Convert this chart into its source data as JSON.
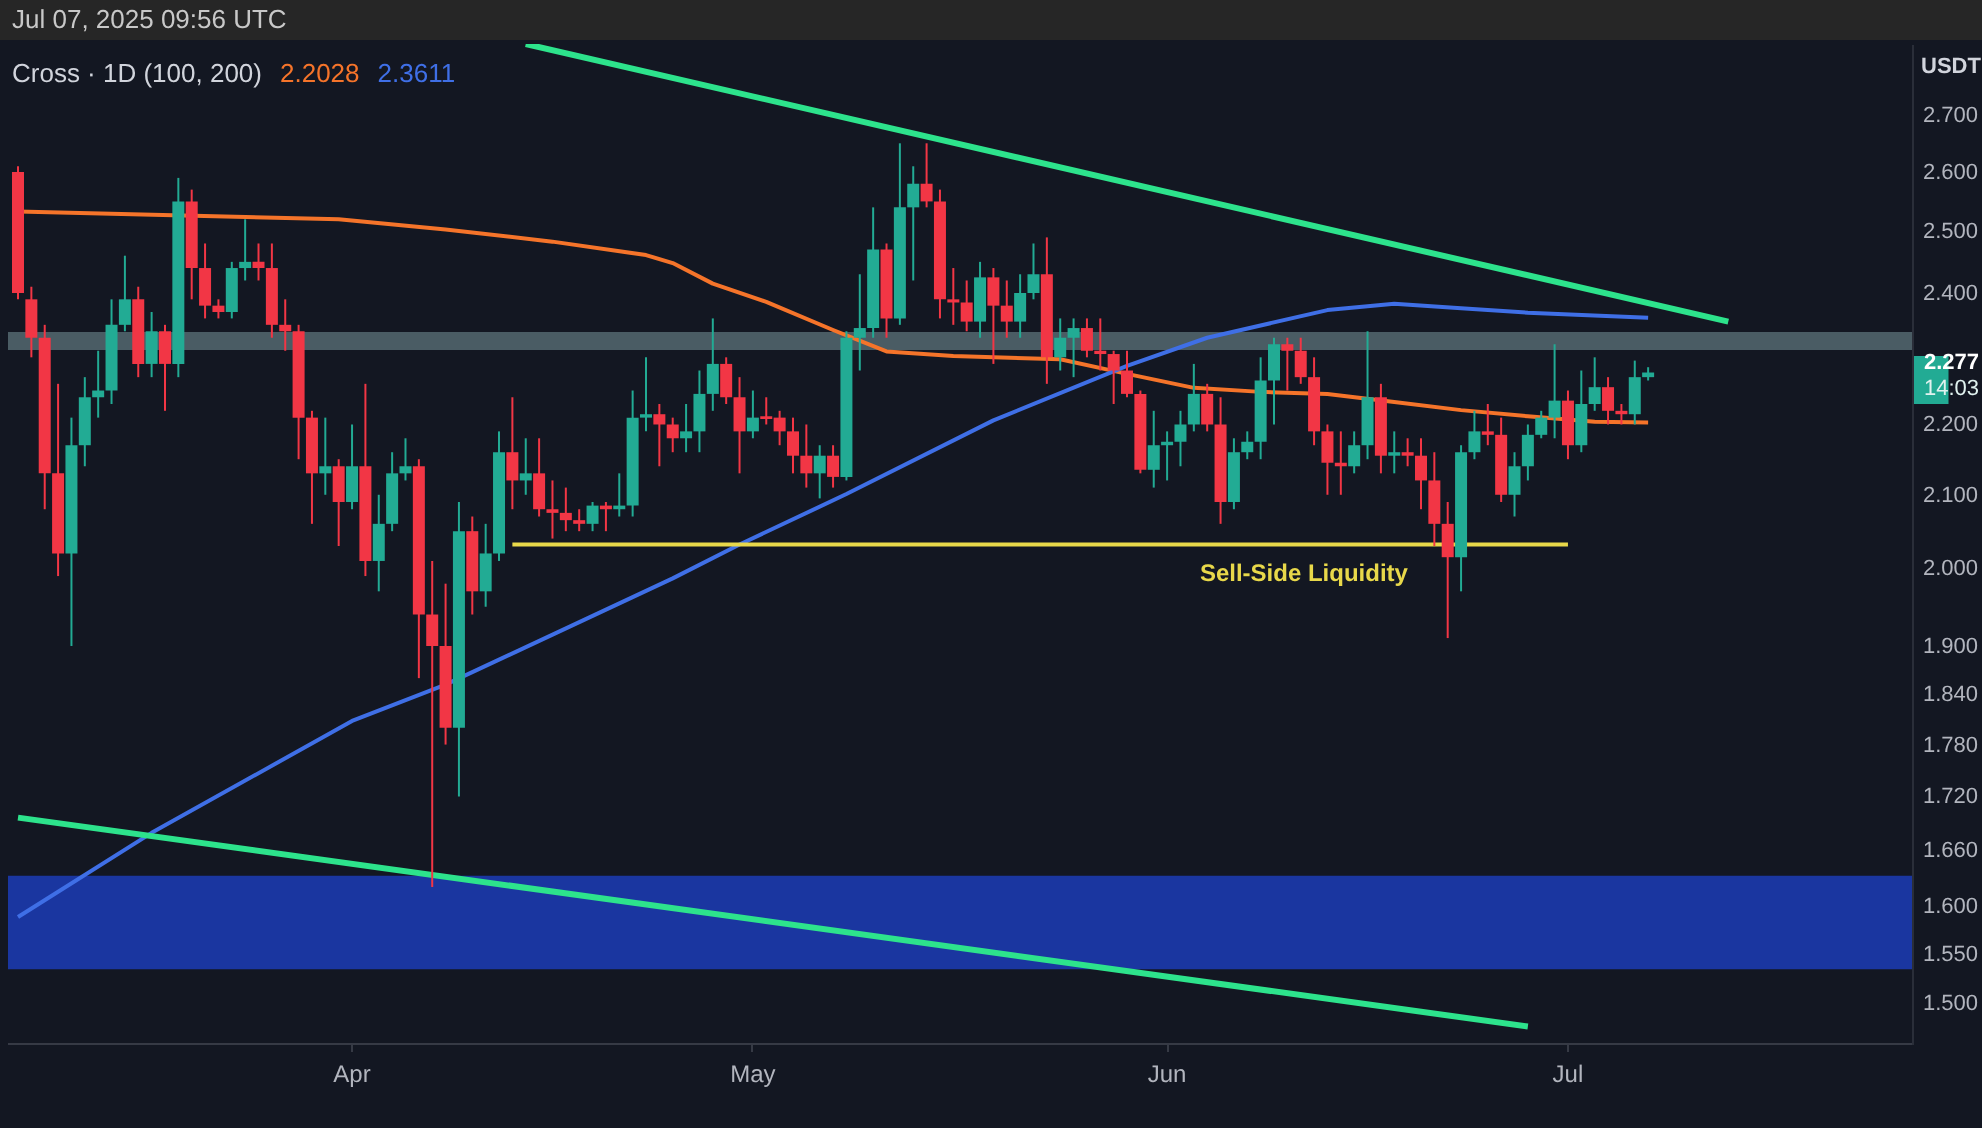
{
  "chart_data": {
    "type": "candlestick",
    "title": "Cross · 1D (100, 200)",
    "subtitle": "Jul 07, 2025 09:56 UTC",
    "ylabel": "USDT",
    "x": [
      "2025-03-07",
      "2025-03-08",
      "2025-03-09",
      "2025-03-10",
      "2025-03-11",
      "2025-03-12",
      "2025-03-13",
      "2025-03-14",
      "2025-03-15",
      "2025-03-16",
      "2025-03-17",
      "2025-03-18",
      "2025-03-19",
      "2025-03-20",
      "2025-03-21",
      "2025-03-22",
      "2025-03-23",
      "2025-03-24",
      "2025-03-25",
      "2025-03-26",
      "2025-03-27",
      "2025-03-28",
      "2025-03-29",
      "2025-03-30",
      "2025-03-31",
      "2025-04-01",
      "2025-04-02",
      "2025-04-03",
      "2025-04-04",
      "2025-04-05",
      "2025-04-06",
      "2025-04-07",
      "2025-04-08",
      "2025-04-09",
      "2025-04-10",
      "2025-04-11",
      "2025-04-12",
      "2025-04-13",
      "2025-04-14",
      "2025-04-15",
      "2025-04-16",
      "2025-04-17",
      "2025-04-18",
      "2025-04-19",
      "2025-04-20",
      "2025-04-21",
      "2025-04-22",
      "2025-04-23",
      "2025-04-24",
      "2025-04-25",
      "2025-04-26",
      "2025-04-27",
      "2025-04-28",
      "2025-04-29",
      "2025-04-30",
      "2025-05-01",
      "2025-05-02",
      "2025-05-03",
      "2025-05-04",
      "2025-05-05",
      "2025-05-06",
      "2025-05-07",
      "2025-05-08",
      "2025-05-09",
      "2025-05-10",
      "2025-05-11",
      "2025-05-12",
      "2025-05-13",
      "2025-05-14",
      "2025-05-15",
      "2025-05-16",
      "2025-05-17",
      "2025-05-18",
      "2025-05-19",
      "2025-05-20",
      "2025-05-21",
      "2025-05-22",
      "2025-05-23",
      "2025-05-24",
      "2025-05-25",
      "2025-05-26",
      "2025-05-27",
      "2025-05-28",
      "2025-05-29",
      "2025-05-30",
      "2025-05-31",
      "2025-06-01",
      "2025-06-02",
      "2025-06-03",
      "2025-06-04",
      "2025-06-05",
      "2025-06-06",
      "2025-06-07",
      "2025-06-08",
      "2025-06-09",
      "2025-06-10",
      "2025-06-11",
      "2025-06-12",
      "2025-06-13",
      "2025-06-14",
      "2025-06-15",
      "2025-06-16",
      "2025-06-17",
      "2025-06-18",
      "2025-06-19",
      "2025-06-20",
      "2025-06-21",
      "2025-06-22",
      "2025-06-23",
      "2025-06-24",
      "2025-06-25",
      "2025-06-26",
      "2025-06-27",
      "2025-06-28",
      "2025-06-29",
      "2025-06-30",
      "2025-07-01",
      "2025-07-02",
      "2025-07-03",
      "2025-07-04",
      "2025-07-05",
      "2025-07-06",
      "2025-07-07"
    ],
    "ohlc": [
      [
        2.6,
        2.61,
        2.39,
        2.4
      ],
      [
        2.39,
        2.41,
        2.3,
        2.33
      ],
      [
        2.33,
        2.35,
        2.08,
        2.13
      ],
      [
        2.13,
        2.26,
        1.99,
        2.02
      ],
      [
        2.02,
        2.21,
        1.9,
        2.17
      ],
      [
        2.17,
        2.27,
        2.14,
        2.24
      ],
      [
        2.24,
        2.31,
        2.21,
        2.25
      ],
      [
        2.25,
        2.39,
        2.23,
        2.35
      ],
      [
        2.35,
        2.46,
        2.34,
        2.39
      ],
      [
        2.39,
        2.41,
        2.27,
        2.29
      ],
      [
        2.29,
        2.37,
        2.27,
        2.34
      ],
      [
        2.34,
        2.35,
        2.22,
        2.29
      ],
      [
        2.29,
        2.59,
        2.27,
        2.55
      ],
      [
        2.55,
        2.57,
        2.39,
        2.44
      ],
      [
        2.44,
        2.48,
        2.36,
        2.38
      ],
      [
        2.38,
        2.39,
        2.36,
        2.37
      ],
      [
        2.37,
        2.45,
        2.36,
        2.44
      ],
      [
        2.44,
        2.52,
        2.42,
        2.45
      ],
      [
        2.45,
        2.48,
        2.42,
        2.44
      ],
      [
        2.44,
        2.48,
        2.33,
        2.35
      ],
      [
        2.35,
        2.39,
        2.31,
        2.34
      ],
      [
        2.34,
        2.35,
        2.15,
        2.21
      ],
      [
        2.21,
        2.22,
        2.06,
        2.13
      ],
      [
        2.13,
        2.21,
        2.1,
        2.14
      ],
      [
        2.14,
        2.15,
        2.03,
        2.09
      ],
      [
        2.09,
        2.2,
        2.08,
        2.14
      ],
      [
        2.14,
        2.26,
        1.99,
        2.01
      ],
      [
        2.01,
        2.1,
        1.97,
        2.06
      ],
      [
        2.06,
        2.16,
        2.05,
        2.13
      ],
      [
        2.13,
        2.18,
        2.12,
        2.14
      ],
      [
        2.14,
        2.15,
        1.86,
        1.94
      ],
      [
        1.94,
        2.01,
        1.62,
        1.9
      ],
      [
        1.9,
        1.98,
        1.78,
        1.8
      ],
      [
        1.8,
        2.09,
        1.72,
        2.05
      ],
      [
        2.05,
        2.07,
        1.94,
        1.97
      ],
      [
        1.97,
        2.06,
        1.95,
        2.02
      ],
      [
        2.02,
        2.19,
        2.01,
        2.16
      ],
      [
        2.16,
        2.24,
        2.08,
        2.12
      ],
      [
        2.12,
        2.18,
        2.1,
        2.13
      ],
      [
        2.13,
        2.18,
        2.07,
        2.08
      ],
      [
        2.08,
        2.12,
        2.04,
        2.075
      ],
      [
        2.075,
        2.11,
        2.05,
        2.065
      ],
      [
        2.065,
        2.08,
        2.05,
        2.06
      ],
      [
        2.06,
        2.09,
        2.05,
        2.085
      ],
      [
        2.085,
        2.09,
        2.05,
        2.08
      ],
      [
        2.08,
        2.13,
        2.07,
        2.085
      ],
      [
        2.085,
        2.25,
        2.07,
        2.21
      ],
      [
        2.21,
        2.3,
        2.19,
        2.215
      ],
      [
        2.215,
        2.23,
        2.14,
        2.2
      ],
      [
        2.2,
        2.21,
        2.16,
        2.18
      ],
      [
        2.18,
        2.23,
        2.16,
        2.19
      ],
      [
        2.19,
        2.28,
        2.16,
        2.245
      ],
      [
        2.245,
        2.36,
        2.22,
        2.29
      ],
      [
        2.29,
        2.3,
        2.23,
        2.24
      ],
      [
        2.24,
        2.27,
        2.13,
        2.19
      ],
      [
        2.19,
        2.25,
        2.18,
        2.21
      ],
      [
        2.212,
        2.24,
        2.2,
        2.208
      ],
      [
        2.21,
        2.22,
        2.17,
        2.19
      ],
      [
        2.19,
        2.21,
        2.13,
        2.155
      ],
      [
        2.155,
        2.2,
        2.11,
        2.13
      ],
      [
        2.13,
        2.17,
        2.095,
        2.155
      ],
      [
        2.155,
        2.17,
        2.11,
        2.125
      ],
      [
        2.125,
        2.34,
        2.12,
        2.33
      ],
      [
        2.33,
        2.43,
        2.28,
        2.345
      ],
      [
        2.345,
        2.54,
        2.33,
        2.47
      ],
      [
        2.47,
        2.48,
        2.33,
        2.36
      ],
      [
        2.36,
        2.65,
        2.35,
        2.54
      ],
      [
        2.54,
        2.61,
        2.42,
        2.58
      ],
      [
        2.58,
        2.65,
        2.54,
        2.55
      ],
      [
        2.55,
        2.57,
        2.36,
        2.39
      ],
      [
        2.39,
        2.44,
        2.35,
        2.385
      ],
      [
        2.385,
        2.42,
        2.34,
        2.355
      ],
      [
        2.355,
        2.45,
        2.33,
        2.425
      ],
      [
        2.425,
        2.44,
        2.29,
        2.38
      ],
      [
        2.38,
        2.42,
        2.33,
        2.355
      ],
      [
        2.355,
        2.43,
        2.33,
        2.4
      ],
      [
        2.4,
        2.48,
        2.39,
        2.43
      ],
      [
        2.43,
        2.49,
        2.26,
        2.3
      ],
      [
        2.3,
        2.36,
        2.28,
        2.33
      ],
      [
        2.33,
        2.36,
        2.27,
        2.345
      ],
      [
        2.345,
        2.36,
        2.3,
        2.31
      ],
      [
        2.31,
        2.36,
        2.28,
        2.305
      ],
      [
        2.305,
        2.31,
        2.23,
        2.28
      ],
      [
        2.28,
        2.31,
        2.24,
        2.245
      ],
      [
        2.245,
        2.25,
        2.13,
        2.135
      ],
      [
        2.135,
        2.22,
        2.11,
        2.17
      ],
      [
        2.17,
        2.19,
        2.12,
        2.175
      ],
      [
        2.175,
        2.22,
        2.14,
        2.2
      ],
      [
        2.2,
        2.29,
        2.19,
        2.245
      ],
      [
        2.245,
        2.26,
        2.19,
        2.2
      ],
      [
        2.2,
        2.24,
        2.06,
        2.09
      ],
      [
        2.09,
        2.18,
        2.08,
        2.16
      ],
      [
        2.16,
        2.19,
        2.15,
        2.175
      ],
      [
        2.175,
        2.3,
        2.15,
        2.265
      ],
      [
        2.265,
        2.33,
        2.2,
        2.32
      ],
      [
        2.32,
        2.33,
        2.25,
        2.31
      ],
      [
        2.31,
        2.33,
        2.26,
        2.27
      ],
      [
        2.27,
        2.3,
        2.17,
        2.19
      ],
      [
        2.19,
        2.2,
        2.1,
        2.145
      ],
      [
        2.145,
        2.19,
        2.1,
        2.14
      ],
      [
        2.14,
        2.19,
        2.13,
        2.17
      ],
      [
        2.17,
        2.34,
        2.15,
        2.24
      ],
      [
        2.24,
        2.26,
        2.13,
        2.155
      ],
      [
        2.155,
        2.19,
        2.13,
        2.16
      ],
      [
        2.16,
        2.18,
        2.14,
        2.155
      ],
      [
        2.155,
        2.18,
        2.08,
        2.12
      ],
      [
        2.12,
        2.16,
        2.03,
        2.06
      ],
      [
        2.06,
        2.09,
        1.91,
        2.015
      ],
      [
        2.015,
        2.17,
        1.97,
        2.16
      ],
      [
        2.16,
        2.22,
        2.15,
        2.19
      ],
      [
        2.19,
        2.23,
        2.17,
        2.185
      ],
      [
        2.185,
        2.21,
        2.09,
        2.1
      ],
      [
        2.1,
        2.16,
        2.07,
        2.14
      ],
      [
        2.14,
        2.2,
        2.12,
        2.185
      ],
      [
        2.185,
        2.22,
        2.18,
        2.21
      ],
      [
        2.21,
        2.32,
        2.18,
        2.235
      ],
      [
        2.235,
        2.25,
        2.15,
        2.17
      ],
      [
        2.17,
        2.28,
        2.16,
        2.23
      ],
      [
        2.23,
        2.3,
        2.22,
        2.255
      ],
      [
        2.255,
        2.27,
        2.2,
        2.22
      ],
      [
        2.22,
        2.23,
        2.2,
        2.215
      ],
      [
        2.215,
        2.295,
        2.2,
        2.27
      ],
      [
        2.27,
        2.285,
        2.265,
        2.277
      ]
    ],
    "colors": [
      "#f23645",
      "#f23645",
      "#f23645",
      "#f23645",
      "#22ab94",
      "#22ab94",
      "#22ab94",
      "#22ab94",
      "#22ab94",
      "#f23645",
      "#22ab94",
      "#f23645",
      "#22ab94",
      "#f23645",
      "#f23645",
      "#f23645",
      "#22ab94",
      "#22ab94",
      "#f23645",
      "#f23645",
      "#f23645",
      "#f23645",
      "#f23645",
      "#22ab94",
      "#f23645",
      "#22ab94",
      "#f23645",
      "#22ab94",
      "#22ab94",
      "#22ab94",
      "#f23645",
      "#f23645",
      "#f23645",
      "#22ab94",
      "#f23645",
      "#22ab94",
      "#22ab94",
      "#f23645",
      "#22ab94",
      "#f23645",
      "#f23645",
      "#f23645",
      "#f23645",
      "#22ab94",
      "#f23645",
      "#22ab94",
      "#22ab94",
      "#22ab94",
      "#f23645",
      "#f23645",
      "#22ab94",
      "#22ab94",
      "#22ab94",
      "#f23645",
      "#f23645",
      "#22ab94",
      "#f23645",
      "#f23645",
      "#f23645",
      "#f23645",
      "#22ab94",
      "#f23645",
      "#22ab94",
      "#22ab94",
      "#22ab94",
      "#f23645",
      "#22ab94",
      "#22ab94",
      "#f23645",
      "#f23645",
      "#f23645",
      "#f23645",
      "#22ab94",
      "#f23645",
      "#f23645",
      "#22ab94",
      "#22ab94",
      "#f23645",
      "#22ab94",
      "#22ab94",
      "#f23645",
      "#f23645",
      "#f23645",
      "#f23645",
      "#f23645",
      "#22ab94",
      "#22ab94",
      "#22ab94",
      "#22ab94",
      "#f23645",
      "#f23645",
      "#22ab94",
      "#22ab94",
      "#22ab94",
      "#22ab94",
      "#f23645",
      "#f23645",
      "#f23645",
      "#f23645",
      "#f23645",
      "#22ab94",
      "#22ab94",
      "#f23645",
      "#22ab94",
      "#f23645",
      "#f23645",
      "#f23645",
      "#f23645",
      "#22ab94",
      "#22ab94",
      "#f23645",
      "#f23645",
      "#22ab94",
      "#22ab94",
      "#22ab94",
      "#22ab94",
      "#f23645",
      "#22ab94",
      "#22ab94",
      "#f23645",
      "#f23645",
      "#22ab94",
      "#22ab94"
    ],
    "series": [
      {
        "type": "line",
        "color": "#f5742a",
        "x": [
          "2025-03-07",
          "2025-03-31",
          "2025-04-08",
          "2025-04-16",
          "2025-04-23",
          "2025-04-25",
          "2025-04-28",
          "2025-05-02",
          "2025-05-07",
          "2025-05-11",
          "2025-05-16",
          "2025-05-24",
          "2025-05-29",
          "2025-06-03",
          "2025-06-08",
          "2025-06-13",
          "2025-06-18",
          "2025-06-23",
          "2025-06-28",
          "2025-07-03",
          "2025-07-07"
        ],
        "values": [
          2.533,
          2.52,
          2.503,
          2.483,
          2.461,
          2.448,
          2.415,
          2.386,
          2.342,
          2.309,
          2.302,
          2.297,
          2.275,
          2.254,
          2.248,
          2.245,
          2.233,
          2.221,
          2.212,
          2.204,
          2.2028
        ]
      },
      {
        "type": "line",
        "color": "#3f6fe6",
        "x": [
          "2025-03-07",
          "2025-03-17",
          "2025-04-01",
          "2025-04-08",
          "2025-04-25",
          "2025-04-30",
          "2025-05-08",
          "2025-05-19",
          "2025-05-29",
          "2025-06-04",
          "2025-06-13",
          "2025-06-18",
          "2025-06-23",
          "2025-06-28",
          "2025-07-07"
        ],
        "values": [
          1.588,
          1.679,
          1.808,
          1.852,
          1.987,
          2.032,
          2.101,
          2.206,
          2.287,
          2.33,
          2.373,
          2.383,
          2.376,
          2.369,
          2.3611
        ]
      },
      {
        "type": "line",
        "color": "#2de38c",
        "x": [
          "2025-04-14",
          "2025-07-13"
        ],
        "values": [
          2.83,
          2.355
        ]
      },
      {
        "type": "line",
        "color": "#2de38c",
        "x": [
          "2025-03-07",
          "2025-06-28"
        ],
        "values": [
          1.696,
          1.477
        ]
      },
      {
        "type": "line",
        "name": "Sell-Side Liquidity",
        "color": "#e8d84a",
        "x": [
          "2025-04-13",
          "2025-07-01"
        ],
        "values": [
          2.032,
          2.032
        ]
      }
    ],
    "bands": [
      {
        "axis": "y",
        "from": 2.311,
        "to": 2.339,
        "color": "#4a5c64"
      },
      {
        "axis": "y",
        "from": 1.534,
        "to": 1.632,
        "color": "#1a36a0"
      }
    ],
    "xlim": [
      "2025-03-07",
      "2025-07-26"
    ],
    "xticks": [
      {
        "value": "2025-04-01",
        "label": "Apr"
      },
      {
        "value": "2025-05-01",
        "label": "May"
      },
      {
        "value": "2025-06-01",
        "label": "Jun"
      },
      {
        "value": "2025-07-01",
        "label": "Jul"
      }
    ],
    "ylim": [
      1.46,
      2.83
    ],
    "log": "y",
    "yticks": [
      {
        "value": 1.5,
        "label": "1.500"
      },
      {
        "value": 1.55,
        "label": "1.550"
      },
      {
        "value": 1.6,
        "label": "1.600"
      },
      {
        "value": 1.66,
        "label": "1.660"
      },
      {
        "value": 1.72,
        "label": "1.720"
      },
      {
        "value": 1.78,
        "label": "1.780"
      },
      {
        "value": 1.84,
        "label": "1.840"
      },
      {
        "value": 1.9,
        "label": "1.900"
      },
      {
        "value": 2.0,
        "label": "2.000"
      },
      {
        "value": 2.1,
        "label": "2.100"
      },
      {
        "value": 2.2,
        "label": "2.200"
      },
      {
        "value": 2.4,
        "label": "2.400"
      },
      {
        "value": 2.5,
        "label": "2.500"
      },
      {
        "value": 2.6,
        "label": "2.600"
      },
      {
        "value": 2.7,
        "label": "2.700"
      }
    ],
    "annotations": [
      "2.2028",
      "2.3611",
      "2.277",
      "14:03"
    ],
    "grid": false
  }
}
